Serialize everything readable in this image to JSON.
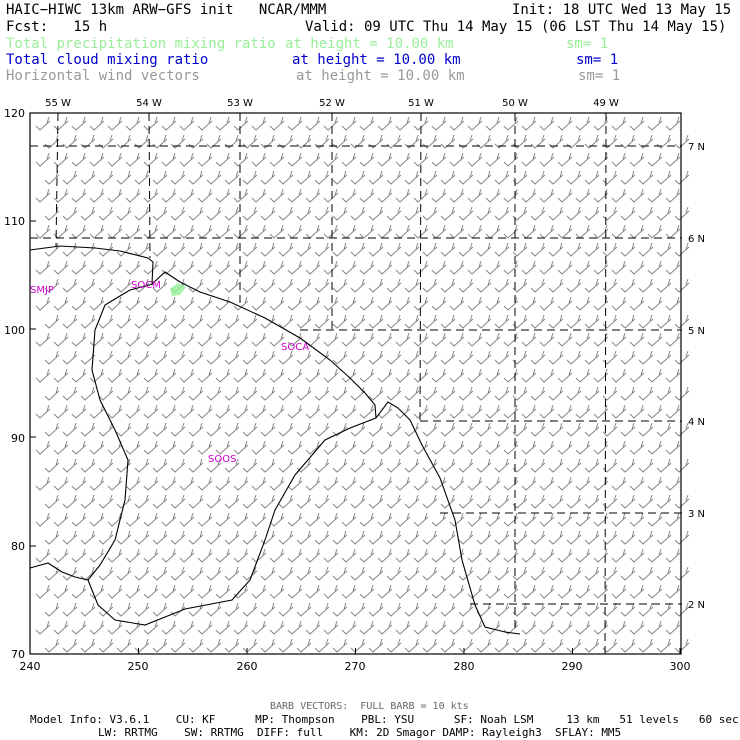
{
  "header": {
    "model": "HAIC−HIWC 13km ARW−GFS init   NCAR/MMM",
    "init": "Init: 18 UTC Wed 13 May 15",
    "fcst": "Fcst:   15 h",
    "valid": "Valid: 09 UTC Thu 14 May 15 (06 LST Thu 14 May 15)",
    "fields": [
      {
        "name": "Total precipitation mixing ratio",
        "level": "at height = 10.00 km",
        "sm": "sm= 1",
        "color": "#99ee99"
      },
      {
        "name": "Total cloud mixing ratio",
        "level": "at height = 10.00 km",
        "sm": "sm= 1",
        "color": "#0000cc"
      },
      {
        "name": "Horizontal wind vectors",
        "level": "at height = 10.00 km",
        "sm": "sm= 1",
        "color": "#999999"
      }
    ]
  },
  "map": {
    "lon_labels": [
      "55 W",
      "54 W",
      "53 W",
      "52 W",
      "51 W",
      "50 W",
      "49 W"
    ],
    "lat_labels": [
      "7 N",
      "6 N",
      "5 N",
      "4 N",
      "3 N",
      "2 N"
    ],
    "x_ticks": [
      "240",
      "250",
      "260",
      "270",
      "280",
      "290",
      "300"
    ],
    "y_ticks": [
      "120",
      "110",
      "100",
      "90",
      "80",
      "70"
    ],
    "place_labels": [
      "SMJP",
      "SOCM",
      "SOCA",
      "SOOS"
    ],
    "place_color": "#cc00cc",
    "barb_color": "#888888"
  },
  "footer": {
    "barb_note": "BARB VECTORS:  FULL BARB = 10 kts",
    "line1": "Model Info: V3.6.1    CU: KF      MP: Thompson    PBL: YSU      SF: Noah LSM     13 km   51 levels   60 sec",
    "line2": "LW: RRTMG    SW: RRTMG  DIFF: full    KM: 2D Smagor DAMP: Rayleigh3  SFLAY: MM5"
  }
}
